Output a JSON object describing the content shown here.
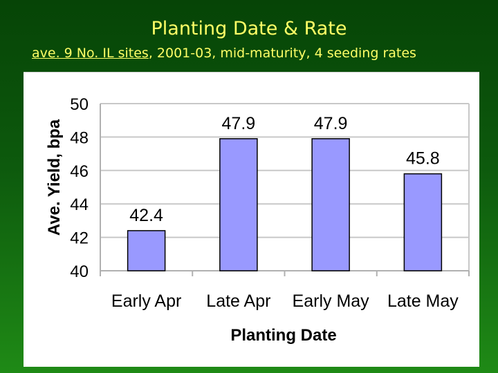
{
  "slide": {
    "title": "Planting Date & Rate",
    "subtitle_underlined": "ave. 9 No. IL sites",
    "subtitle_rest": ", 2001-03, mid-maturity, 4 seeding rates",
    "title_color": "#ffff66"
  },
  "chart_data": {
    "type": "bar",
    "title": "",
    "xlabel": "Planting Date",
    "ylabel": "Ave. Yield, bpa",
    "categories": [
      "Early Apr",
      "Late Apr",
      "Early May",
      "Late May"
    ],
    "values": [
      42.4,
      47.9,
      47.9,
      45.8
    ],
    "value_labels": [
      "42.4",
      "47.9",
      "47.9",
      "45.8"
    ],
    "ylim": [
      40,
      50
    ],
    "yticks": [
      40,
      42,
      44,
      46,
      48,
      50
    ],
    "grid": true,
    "legend": "none",
    "bar_color": "#9999ff"
  }
}
